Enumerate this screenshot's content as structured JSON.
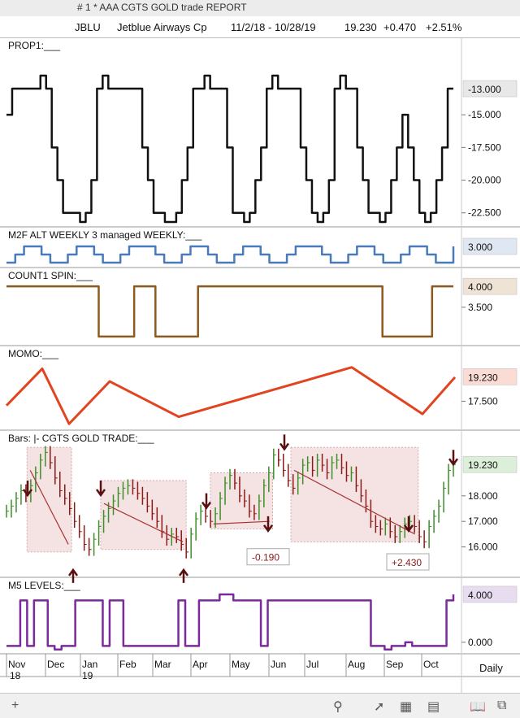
{
  "window_title": "# 1 *  AAA CGTS GOLD trade REPORT",
  "header": {
    "symbol": "JBLU",
    "name": "Jetblue Airways Cp",
    "date_range": "11/2/18 - 10/28/19",
    "last": "19.230",
    "change": "+0.470",
    "change_pct": "+2.51%"
  },
  "bottom": {
    "period": "Daily"
  },
  "colors": {
    "prop1": "#111111",
    "m2f": "#4a7ab8",
    "count1": "#8b5a1e",
    "momo": "#e24420",
    "bars_up": "#3c8f2a",
    "bars_down": "#8b1a1a",
    "m5": "#7b2a9c",
    "box": "#f3dcdc"
  },
  "icons": [
    "plus-icon",
    "search-icon",
    "chart-line-icon",
    "grid-icon",
    "panel-icon",
    "book-icon",
    "expand-icon"
  ],
  "chart_data": [
    {
      "panel": "PROP1",
      "type": "line",
      "title": "PROP1:___",
      "ylim": [
        -23.2,
        -10.2
      ],
      "tick_labels": [
        "-13.000",
        "-15.000",
        "-17.500",
        "-20.000",
        "-22.500"
      ],
      "tick_values": [
        -13,
        -15,
        -17.5,
        -20,
        -22.5
      ],
      "values": [
        -15,
        -13,
        -13,
        -13,
        -13,
        -13,
        -12,
        -13,
        -17.5,
        -20,
        -22.5,
        -22.5,
        -22.5,
        -23.2,
        -22.5,
        -20,
        -13,
        -12,
        -13,
        -13,
        -13,
        -13,
        -13,
        -13,
        -17.5,
        -20,
        -22.5,
        -22.5,
        -23.2,
        -23.2,
        -22.5,
        -20,
        -17.5,
        -13,
        -13,
        -12,
        -13,
        -13,
        -13,
        -17.5,
        -22.5,
        -22.5,
        -23.2,
        -22.5,
        -20,
        -17.5,
        -13,
        -12,
        -13,
        -13,
        -13,
        -13,
        -17.5,
        -20,
        -22.5,
        -23.2,
        -22.5,
        -20,
        -13,
        -12,
        -13,
        -13,
        -17.5,
        -20,
        -22.5,
        -22.5,
        -23.2,
        -22.5,
        -20,
        -17.5,
        -15,
        -17.5,
        -20,
        -22.5,
        -23.2,
        -22.5,
        -20,
        -17.5,
        -13,
        -13
      ],
      "last_label": "-13.000"
    },
    {
      "panel": "M2F",
      "type": "line",
      "title": "M2F ALT WEEKLY 3 managed WEEKLY:___",
      "ylim": [
        1.0,
        3.6
      ],
      "tick_labels": [
        "3.000"
      ],
      "tick_values": [
        3.0
      ],
      "values": [
        1,
        2,
        3,
        3,
        2,
        1,
        1,
        2,
        3,
        3,
        2,
        1,
        1,
        2,
        3,
        3,
        3,
        2,
        1,
        1,
        2,
        3,
        3,
        2,
        1,
        1,
        2,
        3,
        3,
        2,
        1,
        1,
        2,
        3,
        3,
        3,
        2,
        1,
        1,
        2,
        3,
        3,
        2,
        1,
        1,
        2,
        3,
        3,
        2,
        1,
        1,
        3
      ],
      "last_label": "3.000"
    },
    {
      "panel": "COUNT1 SPIN",
      "type": "line",
      "title": "COUNT1 SPIN:___",
      "ylim": [
        2.7,
        4.1
      ],
      "tick_labels": [
        "4.000",
        "3.500"
      ],
      "tick_values": [
        4.0,
        3.5
      ],
      "values": [
        4,
        4,
        4,
        4,
        4,
        4,
        4,
        4,
        4,
        4,
        4,
        4,
        4,
        2.8,
        2.8,
        2.8,
        2.8,
        2.8,
        4,
        4,
        4,
        2.8,
        2.8,
        2.8,
        2.8,
        2.8,
        2.8,
        4,
        4,
        4,
        4,
        4,
        4,
        4,
        4,
        4,
        4,
        4,
        4,
        4,
        4,
        4,
        4,
        4,
        4,
        4,
        4,
        4,
        4,
        4,
        4,
        4,
        4,
        2.8,
        2.8,
        2.8,
        2.8,
        2.8,
        2.8,
        2.8,
        4,
        4,
        4,
        4
      ],
      "last_label": "4.000"
    },
    {
      "panel": "MOMO",
      "type": "line",
      "title": "MOMO:___",
      "ylim": [
        15.8,
        20.4
      ],
      "tick_labels": [
        "19.230",
        "17.500"
      ],
      "tick_values": [
        19.23,
        17.5
      ],
      "x": [
        0,
        44,
        77,
        127,
        212,
        425,
        512,
        552
      ],
      "values": [
        17.2,
        19.8,
        15.9,
        18.9,
        16.4,
        19.9,
        16.6,
        19.2
      ],
      "last_label": "19.230"
    },
    {
      "panel": "Bars",
      "type": "bar",
      "title": "Bars: |-  CGTS  GOLD TRADE:___",
      "ylim": [
        15.0,
        20.0
      ],
      "tick_labels": [
        "19.230",
        "18.000",
        "17.000",
        "16.000"
      ],
      "tick_values": [
        19.23,
        18.0,
        17.0,
        16.0
      ],
      "closes": [
        17.4,
        17.6,
        17.9,
        18.2,
        18.0,
        18.4,
        18.9,
        19.4,
        19.7,
        19.3,
        18.7,
        18.2,
        17.9,
        17.5,
        17.0,
        16.6,
        16.1,
        15.9,
        16.3,
        16.8,
        17.2,
        17.5,
        17.8,
        18.1,
        18.3,
        18.4,
        18.3,
        18.1,
        17.9,
        17.6,
        17.3,
        17.0,
        16.6,
        16.3,
        16.5,
        16.4,
        16.1,
        15.8,
        16.5,
        17.1,
        17.4,
        17.2,
        17.0,
        17.3,
        17.9,
        18.5,
        18.8,
        18.5,
        18.0,
        17.8,
        17.4,
        17.3,
        17.8,
        18.4,
        18.9,
        19.6,
        19.4,
        19.0,
        18.6,
        18.3,
        18.7,
        19.2,
        19.3,
        19.0,
        19.4,
        19.2,
        18.9,
        19.3,
        19.4,
        19.1,
        18.8,
        18.9,
        18.4,
        18.0,
        17.6,
        17.0,
        16.8,
        16.7,
        16.9,
        16.6,
        16.4,
        16.6,
        16.9,
        17.0,
        16.8,
        16.4,
        16.2,
        16.8,
        17.2,
        17.6,
        18.3,
        19.0,
        19.23
      ],
      "boxes": [
        {
          "x0": 0.045,
          "x1": 0.143,
          "y0": 15.8,
          "y1": 19.9
        },
        {
          "x0": 0.207,
          "x1": 0.395,
          "y0": 15.9,
          "y1": 18.6
        },
        {
          "x0": 0.448,
          "x1": 0.585,
          "y0": 16.7,
          "y1": 18.9
        },
        {
          "x0": 0.625,
          "x1": 0.905,
          "y0": 16.2,
          "y1": 19.9
        }
      ],
      "annotations": [
        "-0.190",
        "+2.430"
      ],
      "last_label": "19.230"
    },
    {
      "panel": "M5 LEVELS",
      "type": "line",
      "title": "M5 LEVELS:___",
      "ylim": [
        -0.55,
        4.2
      ],
      "tick_labels": [
        "4.000",
        "0.000"
      ],
      "tick_values": [
        4.0,
        0.0
      ],
      "values": [
        -0.3,
        -0.3,
        3.5,
        -0.3,
        3.5,
        3.5,
        -0.3,
        -0.6,
        -0.3,
        -0.3,
        3.5,
        3.5,
        3.5,
        3.5,
        -0.3,
        3.5,
        3.5,
        -0.3,
        -0.3,
        -0.3,
        -0.3,
        -0.3,
        -0.3,
        -0.3,
        -0.3,
        3.5,
        -0.3,
        -0.3,
        3.5,
        3.5,
        3.5,
        4.0,
        4.0,
        3.5,
        3.5,
        3.5,
        3.5,
        -0.3,
        3.5,
        3.5,
        3.5,
        3.5,
        3.5,
        3.5,
        3.5,
        3.5,
        3.5,
        3.5,
        3.5,
        3.5,
        3.5,
        3.5,
        3.5,
        -0.3,
        -0.3,
        -0.6,
        -0.3,
        -0.3,
        0.0,
        -0.3,
        -0.3,
        -0.3,
        -0.3,
        -0.3,
        3.5,
        4.0
      ],
      "last_label": "4.000"
    }
  ],
  "x_axis": {
    "months": [
      "Nov",
      "Dec",
      "Jan",
      "Feb",
      "Mar",
      "Apr",
      "May",
      "Jun",
      "Jul",
      "Aug",
      "Sep",
      "Oct"
    ],
    "years": [
      "18",
      "19"
    ]
  }
}
